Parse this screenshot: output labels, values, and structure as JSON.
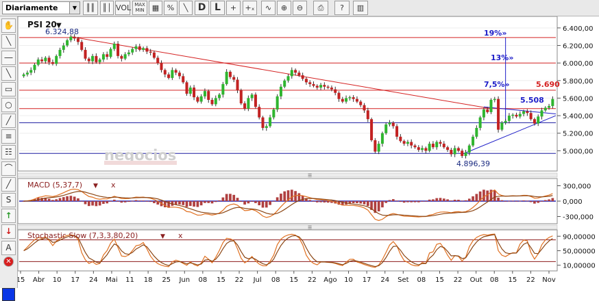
{
  "toolbar": {
    "period": "Diariamente",
    "buttons": [
      {
        "name": "candle-type-button",
        "label": "║║"
      },
      {
        "name": "chart-type-button",
        "label": "║│"
      },
      {
        "name": "vol-button",
        "label": "VOL"
      },
      {
        "name": "max-min-button",
        "label": "MAX MIN"
      },
      {
        "name": "grid-button",
        "label": "▦"
      },
      {
        "name": "percent-button",
        "label": "%"
      },
      {
        "name": "lines-button",
        "label": "╲"
      },
      {
        "name": "daily-view-button",
        "label": "D"
      },
      {
        "name": "log-button",
        "label": "L"
      },
      {
        "name": "crosshair-button",
        "label": "+"
      },
      {
        "name": "crosshair-values-button",
        "label": "+ₓ"
      },
      {
        "name": "zigzag-button",
        "label": "∿"
      },
      {
        "name": "zoom-in-button",
        "label": "⊕"
      },
      {
        "name": "zoom-out-button",
        "label": "⊖"
      },
      {
        "name": "print-button",
        "label": "⎙"
      },
      {
        "name": "help-button",
        "label": "?"
      },
      {
        "name": "book-button",
        "label": "▥"
      }
    ]
  },
  "sidebar": {
    "tools": [
      {
        "name": "hand-tool-icon",
        "label": "✋"
      },
      {
        "name": "line-tool-icon",
        "label": "╲"
      },
      {
        "name": "hline-tool-icon",
        "label": "―"
      },
      {
        "name": "parallel-lines-tool-icon",
        "label": "╲"
      },
      {
        "name": "rectangle-tool-icon",
        "label": "▭"
      },
      {
        "name": "circle-tool-icon",
        "label": "○"
      },
      {
        "name": "fan-tool-icon",
        "label": "╱"
      },
      {
        "name": "fibonacci-tool-icon",
        "label": "≡"
      },
      {
        "name": "retracement-tool-icon",
        "label": "☷"
      },
      {
        "name": "arc-tool-icon",
        "label": "⌒"
      },
      {
        "name": "channel-tool-icon",
        "label": "╱"
      },
      {
        "name": "speed-lines-tool-icon",
        "label": "S"
      },
      {
        "name": "arrow-up-tool-icon",
        "label": "↑"
      },
      {
        "name": "arrow-down-tool-icon",
        "label": "↓"
      },
      {
        "name": "text-tool-icon",
        "label": "A"
      },
      {
        "name": "delete-tool-icon",
        "label": "✕"
      }
    ],
    "color": "#0a36e6"
  },
  "chart_data": {
    "type": "candlestick",
    "title": "PSI 20",
    "watermark": "negocios",
    "max_label": "6.324,88",
    "min_label": "4.896,39",
    "price_ticks": [
      "6.400,00",
      "6.200,00",
      "6.000,00",
      "5.800,00",
      "5.600,00",
      "5.400,00",
      "5.200,00",
      "5.000,00"
    ],
    "y_range": [
      4800,
      6500
    ],
    "horizontal_lines": [
      {
        "value": 6290,
        "color": "#d42020"
      },
      {
        "value": 6000,
        "color": "#d42020"
      },
      {
        "value": 5690,
        "color": "#d42020"
      },
      {
        "value": 5480,
        "color": "#d42020"
      },
      {
        "value": 5320,
        "color": "#1a1aa0"
      },
      {
        "value": 4970,
        "color": "#1a1aa0"
      }
    ],
    "fib_labels": [
      {
        "text": "19%»",
        "color": "#1c1cc8"
      },
      {
        "text": "13%»",
        "color": "#1c1cc8"
      },
      {
        "text": "7,5%»",
        "color": "#1c1cc8"
      },
      {
        "text": "5.690",
        "color": "#d42020"
      },
      {
        "text": "5.508",
        "color": "#1c1cc8"
      }
    ],
    "x_labels": [
      "15",
      "Abr",
      "10",
      "17",
      "24",
      "Mai",
      "11",
      "18",
      "25",
      "Jun",
      "08",
      "15",
      "22",
      "Jul",
      "08",
      "15",
      "22",
      "Ago",
      "10",
      "17",
      "24",
      "Set",
      "08",
      "15",
      "22",
      "Out",
      "08",
      "15",
      "22",
      "Nov"
    ],
    "closes": [
      5870,
      5890,
      5920,
      5980,
      6040,
      6020,
      6060,
      6010,
      5990,
      6080,
      6150,
      6200,
      6260,
      6300,
      6280,
      6240,
      6150,
      6050,
      6020,
      6080,
      6010,
      6040,
      6100,
      6070,
      6160,
      6220,
      6080,
      6050,
      6100,
      6120,
      6160,
      6190,
      6150,
      6170,
      6130,
      6120,
      6060,
      6000,
      5920,
      5870,
      5830,
      5920,
      5890,
      5850,
      5780,
      5650,
      5720,
      5610,
      5560,
      5620,
      5680,
      5580,
      5530,
      5600,
      5640,
      5760,
      5900,
      5840,
      5810,
      5690,
      5540,
      5480,
      5600,
      5640,
      5500,
      5380,
      5260,
      5280,
      5380,
      5470,
      5620,
      5730,
      5800,
      5850,
      5920,
      5890,
      5860,
      5820,
      5780,
      5760,
      5740,
      5720,
      5750,
      5730,
      5720,
      5700,
      5660,
      5590,
      5560,
      5600,
      5610,
      5590,
      5560,
      5520,
      5460,
      5360,
      5120,
      4990,
      5080,
      5200,
      5300,
      5320,
      5280,
      5160,
      5110,
      5080,
      5100,
      5060,
      5040,
      5010,
      5030,
      5000,
      5080,
      5040,
      5100,
      5080,
      5040,
      5010,
      4960,
      5030,
      5000,
      4940,
      4980,
      5060,
      5160,
      5260,
      5380,
      5470,
      5440,
      5580,
      5590,
      5240,
      5320,
      5340,
      5400,
      5410,
      5390,
      5420,
      5450,
      5430,
      5360,
      5310,
      5390,
      5460,
      5490,
      5510,
      5590
    ],
    "macd_ticks": [
      "300,000",
      "0,000",
      "-300,000"
    ],
    "macd_range": [
      -400,
      400
    ],
    "macd_label": "MACD (5,37,7)",
    "stoch_ticks": [
      "90,00000",
      "50,00000",
      "10,00000"
    ],
    "stoch_range": [
      0,
      100
    ],
    "stoch_label": "Stochastic Slow (7,3,3,80,20)",
    "stoch_lines": [
      80,
      20
    ]
  }
}
